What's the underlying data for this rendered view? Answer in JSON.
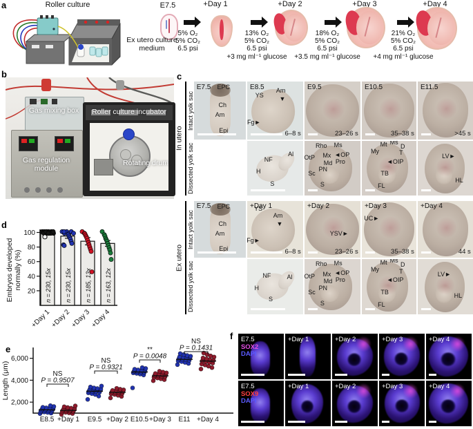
{
  "panel_labels": {
    "a": "a",
    "b": "b",
    "c": "c",
    "d": "d",
    "e": "e",
    "f": "f"
  },
  "panel_a": {
    "machine_label": "Roller culture",
    "start_stage": "E7.5",
    "medium_label": "Ex utero culture medium",
    "steps": [
      {
        "stage": "+Day 1",
        "conditions": [
          "5% O₂",
          "5% CO₂",
          "6.5 psi"
        ],
        "glucose": ""
      },
      {
        "stage": "+Day 2",
        "conditions": [
          "13% O₂",
          "5% CO₂",
          "6.5 psi"
        ],
        "glucose": "+3 mg ml⁻¹ glucose"
      },
      {
        "stage": "+Day 3",
        "conditions": [
          "18% O₂",
          "5% CO₂",
          "6.5 psi"
        ],
        "glucose": "+3.5 mg ml⁻¹ glucose"
      },
      {
        "stage": "+Day 4",
        "conditions": [
          "21% O₂",
          "5% CO₂",
          "6.5 psi"
        ],
        "glucose": "+4 mg ml⁻¹ glucose"
      }
    ]
  },
  "panel_b": {
    "gas_mixing_label": "Gas mixing box",
    "incubator_label": "Roller culture incubator",
    "regulation_label": "Gas regulation module",
    "drum_label": "Rotating drum"
  },
  "panel_c": {
    "groups": [
      {
        "name": "In utero",
        "rows": [
          {
            "name": "Intact yolk sac",
            "cells": [
              {
                "stage": "E7.5",
                "somites": "",
                "ann": [
                  [
                    "EPC",
                    57,
                    10
                  ],
                  [
                    "Ch",
                    55,
                    40
                  ],
                  [
                    "Am",
                    50,
                    57
                  ],
                  [
                    "Epi",
                    57,
                    84
                  ]
                ]
              },
              {
                "stage": "E8.5",
                "somites": "6–8 s",
                "ann": [
                  [
                    "YS",
                    22,
                    24
                  ],
                  [
                    "Am",
                    60,
                    16
                  ],
                  [
                    "▼",
                    63,
                    30
                  ],
                  [
                    "Fg►",
                    12,
                    70
                  ]
                ]
              },
              {
                "stage": "E9.5",
                "somites": "23–26 s",
                "ann": []
              },
              {
                "stage": "E10.5",
                "somites": "35–38 s",
                "ann": []
              },
              {
                "stage": "E11.5",
                "somites": ">45 s",
                "ann": []
              }
            ]
          },
          {
            "name": "Dissected yolk sac",
            "cells": [
              null,
              {
                "stage": "",
                "somites": "",
                "ann": [
                  [
                    "NF",
                    38,
                    34
                  ],
                  [
                    "Al",
                    78,
                    24
                  ],
                  [
                    "H",
                    20,
                    56
                  ],
                  [
                    "S",
                    45,
                    78
                  ]
                ]
              },
              {
                "stage": "",
                "somites": "",
                "ann": [
                  [
                    "Rho",
                    30,
                    9
                  ],
                  [
                    "Ms",
                    60,
                    7
                  ],
                  [
                    "OtP",
                    9,
                    31
                  ],
                  [
                    "Mx",
                    40,
                    27
                  ],
                  [
                    "◄OP",
                    67,
                    25
                  ],
                  [
                    "Md",
                    42,
                    40
                  ],
                  [
                    "Pro",
                    64,
                    38
                  ],
                  [
                    "PN",
                    33,
                    52
                  ],
                  [
                    "Sc",
                    13,
                    60
                  ],
                  [
                    "S",
                    32,
                    80
                  ]
                ]
              },
              {
                "stage": "",
                "somites": "",
                "ann": [
                  [
                    "Mt",
                    40,
                    6
                  ],
                  [
                    "Ms",
                    59,
                    3
                  ],
                  [
                    "D",
                    75,
                    10
                  ],
                  [
                    "My",
                    24,
                    19
                  ],
                  [
                    "T",
                    72,
                    22
                  ],
                  [
                    "◄OIP",
                    61,
                    38
                  ],
                  [
                    "TB",
                    42,
                    60
                  ],
                  [
                    "FL",
                    36,
                    82
                  ]
                ]
              },
              {
                "stage": "",
                "somites": "",
                "ann": [
                  [
                    "LV►",
                    56,
                    28
                  ],
                  [
                    "HL",
                    75,
                    72
                  ]
                ]
              }
            ]
          }
        ]
      },
      {
        "name": "Ex utero",
        "rows": [
          {
            "name": "Intact yolk sac",
            "cells": [
              {
                "stage": "E7.5",
                "somites": "",
                "ann": [
                  [
                    "EPC",
                    57,
                    10
                  ],
                  [
                    "Ch",
                    55,
                    40
                  ],
                  [
                    "Am",
                    50,
                    57
                  ],
                  [
                    "Epi",
                    57,
                    84
                  ]
                ]
              },
              {
                "stage": "+Day 1",
                "somites": "6–8 s",
                "ann": [
                  [
                    "YS",
                    20,
                    14
                  ],
                  [
                    "Am",
                    55,
                    26
                  ],
                  [
                    "▼",
                    58,
                    40
                  ],
                  [
                    "Fg►",
                    11,
                    70
                  ]
                ]
              },
              {
                "stage": "+Day 2",
                "somites": "23–26 s",
                "ann": [
                  [
                    "YSV►",
                    62,
                    57
                  ]
                ]
              },
              {
                "stage": "+Day 3",
                "somites": "35–38 s",
                "ann": [
                  [
                    "UC►",
                    18,
                    30
                  ]
                ]
              },
              {
                "stage": "+Day 4",
                "somites": "44 s",
                "ann": []
              }
            ]
          },
          {
            "name": "Dissected yolk sac",
            "cells": [
              null,
              {
                "stage": "",
                "somites": "",
                "ann": [
                  [
                    "NF",
                    35,
                    30
                  ],
                  [
                    "Al",
                    76,
                    32
                  ],
                  [
                    "H",
                    17,
                    52
                  ],
                  [
                    "S",
                    42,
                    73
                  ]
                ]
              },
              {
                "stage": "",
                "somites": "",
                "ann": [
                  [
                    "Rho",
                    30,
                    9
                  ],
                  [
                    "Ms",
                    60,
                    7
                  ],
                  [
                    "OtP",
                    9,
                    31
                  ],
                  [
                    "Mx",
                    40,
                    27
                  ],
                  [
                    "◄OP",
                    67,
                    25
                  ],
                  [
                    "Md",
                    42,
                    40
                  ],
                  [
                    "Pro",
                    64,
                    38
                  ],
                  [
                    "PN",
                    33,
                    52
                  ],
                  [
                    "Sc",
                    13,
                    60
                  ],
                  [
                    "S",
                    32,
                    80
                  ]
                ]
              },
              {
                "stage": "",
                "somites": "",
                "ann": [
                  [
                    "Mt",
                    40,
                    6
                  ],
                  [
                    "Ms",
                    59,
                    3
                  ],
                  [
                    "D",
                    75,
                    10
                  ],
                  [
                    "My",
                    24,
                    19
                  ],
                  [
                    "T",
                    72,
                    22
                  ],
                  [
                    "◄OIP",
                    61,
                    38
                  ],
                  [
                    "TB",
                    42,
                    60
                  ],
                  [
                    "FL",
                    36,
                    82
                  ]
                ]
              },
              {
                "stage": "",
                "somites": "",
                "ann": [
                  [
                    "LV►",
                    48,
                    28
                  ],
                  [
                    "HL",
                    73,
                    66
                  ]
                ]
              }
            ]
          }
        ]
      }
    ]
  },
  "chart_data": [
    {
      "id": "d",
      "type": "bar",
      "categories": [
        "+Day 1",
        "+Day 2",
        "+Day 3",
        "+Day 4"
      ],
      "values": [
        100,
        95,
        88,
        85
      ],
      "errors": [
        0,
        3,
        5,
        4
      ],
      "n_labels": [
        "n = 230, 15x",
        "n = 230, 15x",
        "n = 185, 13x",
        "n = 163, 12x"
      ],
      "point_colors": [
        "#141414",
        "#2133b0",
        "#d01325",
        "#1c7d3c"
      ],
      "points": [
        [
          100,
          100,
          100,
          100,
          100,
          100,
          100,
          100,
          100,
          100,
          100,
          100,
          100,
          100
        ],
        [
          100,
          100,
          100,
          100,
          100,
          100,
          100,
          97,
          95,
          93,
          91,
          88,
          85,
          83,
          82
        ],
        [
          100,
          100,
          98,
          96,
          94,
          92,
          89,
          86,
          83,
          80,
          77,
          74,
          46
        ],
        [
          100,
          97,
          95,
          92,
          90,
          88,
          85,
          82,
          79,
          76,
          72,
          63
        ]
      ],
      "open_points": [
        94,
        null,
        null,
        null
      ],
      "ylabel_lines": [
        "Embryos developed",
        "normally (%)"
      ],
      "yticks": [
        20,
        40,
        60,
        80,
        100
      ],
      "ylim": [
        0,
        105
      ],
      "bar_fill": "#ecebe8",
      "legend_position": "none",
      "grid": false
    },
    {
      "id": "e",
      "type": "scatter",
      "ylabel": "Length (μm)",
      "yticks": [
        2000,
        4000,
        6000
      ],
      "ytick_labels": [
        "2,000",
        "4,000",
        "6,000"
      ],
      "ylim": [
        900,
        7000
      ],
      "grid": false,
      "groups": [
        {
          "label": "E8.5",
          "color": "#2133b0",
          "mean": 1300,
          "values": [
            950,
            1000,
            1060,
            1100,
            1140,
            1170,
            1200,
            1230,
            1260,
            1290,
            1310,
            1340,
            1370,
            1400,
            1440,
            1480,
            1530,
            1600,
            1680
          ]
        },
        {
          "label": "+Day 1",
          "color": "#8f1b2c",
          "mean": 1250,
          "values": [
            880,
            960,
            1020,
            1070,
            1110,
            1150,
            1180,
            1210,
            1240,
            1270,
            1300,
            1330,
            1360,
            1400,
            1450,
            1510,
            1580,
            1660
          ]
        },
        {
          "label": "E9.5",
          "color": "#2133b0",
          "mean": 3000,
          "values": [
            2250,
            2550,
            2700,
            2780,
            2850,
            2900,
            2950,
            2990,
            3020,
            3050,
            3080,
            3110,
            3150,
            3190,
            3240,
            3300,
            3380,
            3470
          ]
        },
        {
          "label": "+Day 2",
          "color": "#8f1b2c",
          "mean": 2900,
          "values": [
            2380,
            2520,
            2620,
            2700,
            2760,
            2810,
            2860,
            2900,
            2930,
            2960,
            2990,
            3030,
            3070,
            3120,
            3180,
            3260
          ]
        },
        {
          "label": "E10.5",
          "color": "#2133b0",
          "mean": 4750,
          "values": [
            3300,
            4480,
            4560,
            4620,
            4670,
            4710,
            4750,
            4780,
            4810,
            4850,
            4890,
            4940,
            5000,
            5070,
            5150
          ]
        },
        {
          "label": "+Day 3",
          "color": "#8f1b2c",
          "mean": 4400,
          "values": [
            3950,
            4050,
            4130,
            4200,
            4260,
            4310,
            4360,
            4400,
            4430,
            4470,
            4510,
            4560,
            4610,
            4670,
            4740,
            4820
          ]
        },
        {
          "label": "E11",
          "color": "#2133b0",
          "mean": 5900,
          "values": [
            5420,
            5530,
            5620,
            5700,
            5760,
            5820,
            5870,
            5910,
            5950,
            5990,
            6030,
            6080,
            6130,
            6190,
            6260,
            6340,
            6430
          ]
        },
        {
          "label": "+Day 4",
          "color": "#8f1b2c",
          "mean": 5750,
          "values": [
            5020,
            5150,
            5280,
            5390,
            5480,
            5560,
            5630,
            5700,
            5760,
            5820,
            5880,
            5950,
            6030,
            6120,
            6220,
            6340,
            6480
          ]
        }
      ],
      "comparisons": [
        {
          "a": 0,
          "b": 1,
          "sig": "NS",
          "p": "P = 0.9507"
        },
        {
          "a": 2,
          "b": 3,
          "sig": "NS",
          "p": "P = 0.9321"
        },
        {
          "a": 4,
          "b": 5,
          "sig": "**",
          "p": "P = 0.0048"
        },
        {
          "a": 6,
          "b": 7,
          "sig": "NS",
          "p": "P = 0.1431"
        }
      ]
    }
  ],
  "panel_f": {
    "rows": [
      {
        "stage": "E7.5",
        "markers": [
          {
            "label": "SOX2",
            "color": "#e34fe3"
          },
          {
            "label": "DAPI",
            "color": "#5b5bff"
          }
        ],
        "days": [
          "+Day 1",
          "+Day 2",
          "+Day 3",
          "+Day 4"
        ]
      },
      {
        "stage": "E7.5",
        "markers": [
          {
            "label": "SOX9",
            "color": "#ff4040"
          },
          {
            "label": "DAPI",
            "color": "#5b5bff"
          }
        ],
        "days": [
          "+Day 1",
          "+Day 2",
          "+Day 3",
          "+Day 4"
        ]
      }
    ]
  }
}
